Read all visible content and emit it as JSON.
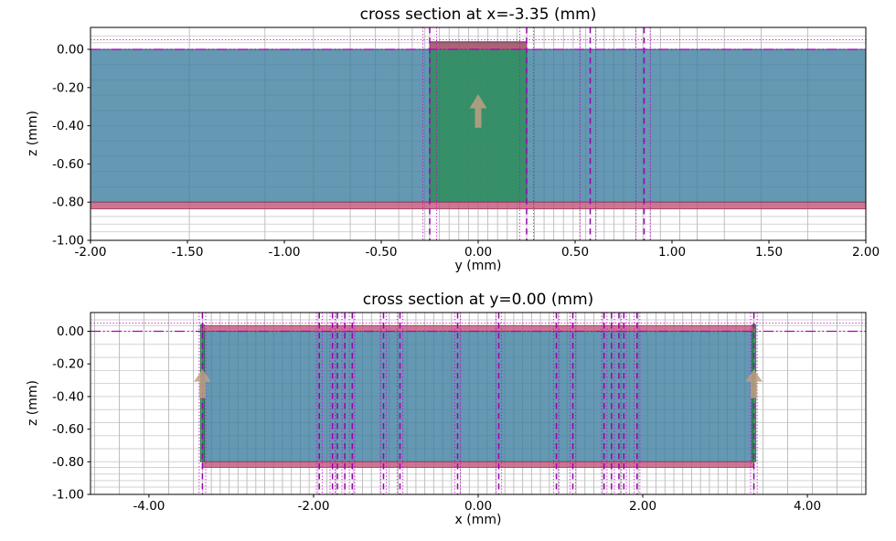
{
  "figure_background": "#ffffff",
  "style": {
    "mesh_vertical_color": "#b9b9b9",
    "mesh_horizontal_color": "#d2d2d2",
    "spine_color": "#000000",
    "tick_label_color": "#000000",
    "magenta_dotted_color": "#cf00cf",
    "magenta_dashed_color": "#9c00b0",
    "magenta_dashdot_color": "#b000b8",
    "arrow_color": "#bfa084",
    "substrate_fill": "#3e7e9f",
    "substrate_edge": "#27566f",
    "port_fill": "#2a8d56",
    "port_edge": "#1e6b41",
    "conductor_fill": "#c25278",
    "conductor_edge": "#9e3f60"
  },
  "chart_data": [
    {
      "type": "area",
      "title": "cross section at x=-3.35 (mm)",
      "xlabel": "y (mm)",
      "ylabel": "z (mm)",
      "xlim": [
        -2.0,
        2.0
      ],
      "zlim": [
        -1.0,
        0.115
      ],
      "xticks": {
        "values": [
          -2.0,
          -1.5,
          -1.0,
          -0.5,
          0.0,
          0.5,
          1.0,
          1.5,
          2.0
        ],
        "labels": [
          "-2.00",
          "-1.50",
          "-1.00",
          "-0.50",
          "0.00",
          "0.50",
          "1.00",
          "1.50",
          "2.00"
        ]
      },
      "zticks": {
        "values": [
          0.0,
          -0.2,
          -0.4,
          -0.6,
          -0.8,
          -1.0
        ],
        "labels": [
          "0.00",
          "-0.20",
          "-0.40",
          "-0.60",
          "-0.80",
          "-1.00"
        ]
      },
      "mesh": {
        "vertical_list": [
          -1.49,
          -1.1,
          -0.85,
          -0.66,
          -0.53,
          -0.41,
          -0.34,
          -0.275,
          0.29,
          0.34,
          0.39,
          0.44,
          0.49,
          0.525,
          0.555,
          0.607,
          0.65,
          0.7,
          0.75,
          0.814,
          0.85,
          0.888,
          0.94,
          1.04,
          1.13,
          1.27,
          1.46,
          1.7
        ],
        "vertical_segments": [
          {
            "from": -0.25,
            "to": 0.25,
            "n": 11
          }
        ],
        "horizontal_list": [
          0.07,
          0.035,
          0.0,
          -0.835,
          -0.875,
          -0.915,
          -0.955
        ],
        "horizontal_segments": [
          {
            "from": -0.08,
            "to": -0.8,
            "n": 10
          }
        ]
      },
      "regions": [
        {
          "name": "substrate",
          "x": [
            -2.0,
            2.0
          ],
          "z": [
            -0.8,
            0.0
          ],
          "role": "substrate"
        },
        {
          "name": "port",
          "x": [
            -0.25,
            0.25
          ],
          "z": [
            -0.8,
            0.04
          ],
          "role": "port"
        },
        {
          "name": "trace",
          "x": [
            -0.25,
            0.25
          ],
          "z": [
            0.0,
            0.035
          ],
          "role": "conductor"
        },
        {
          "name": "ground-plane",
          "x": [
            -2.0,
            2.0
          ],
          "z": [
            -0.835,
            -0.8
          ],
          "role": "conductor"
        }
      ],
      "magenta_vertical_dashed": [
        -0.25,
        0.25,
        0.578,
        0.856
      ],
      "magenta_vertical_dotted": [
        -0.285,
        -0.215,
        0.215,
        0.285,
        0.525,
        0.607,
        0.814,
        0.888
      ],
      "magenta_horizontal_dotted": [
        0.05
      ],
      "magenta_horizontal_dashdot": [
        0.0
      ],
      "arrows": [
        {
          "x": 0.0,
          "z_tail": -0.41,
          "z_head": -0.235
        }
      ]
    },
    {
      "type": "area",
      "title": "cross section at y=0.00 (mm)",
      "xlabel": "x (mm)",
      "ylabel": "z (mm)",
      "xlim": [
        -4.71,
        4.71
      ],
      "zlim": [
        -1.0,
        0.115
      ],
      "xticks": {
        "values": [
          -4.0,
          -2.0,
          0.0,
          2.0,
          4.0
        ],
        "labels": [
          "-4.00",
          "-2.00",
          "0.00",
          "2.00",
          "4.00"
        ]
      },
      "zticks": {
        "values": [
          0.0,
          -0.2,
          -0.4,
          -0.6,
          -0.8,
          -1.0
        ],
        "labels": [
          "0.00",
          "-0.20",
          "-0.40",
          "-0.60",
          "-0.80",
          "-1.00"
        ]
      },
      "mesh": {
        "vertical_list": [
          -4.66,
          -4.36,
          -4.06,
          -3.76,
          -3.46,
          3.46,
          3.76,
          4.06,
          4.36,
          4.66
        ],
        "vertical_segments": [
          {
            "from": -3.35,
            "to": 3.35,
            "n": 63
          }
        ],
        "horizontal_list": [
          0.07,
          0.035,
          0.0,
          -0.835,
          -0.875,
          -0.915,
          -0.955
        ],
        "horizontal_segments": [
          {
            "from": -0.08,
            "to": -0.8,
            "n": 10
          }
        ]
      },
      "regions": [
        {
          "name": "substrate",
          "x": [
            -3.35,
            3.35
          ],
          "z": [
            -0.8,
            0.0
          ],
          "role": "substrate"
        },
        {
          "name": "port-left",
          "x": [
            -3.373,
            -3.327
          ],
          "z": [
            -0.8,
            0.04
          ],
          "role": "port"
        },
        {
          "name": "port-right",
          "x": [
            3.327,
            3.373
          ],
          "z": [
            -0.8,
            0.04
          ],
          "role": "port"
        },
        {
          "name": "trace",
          "x": [
            -3.35,
            3.35
          ],
          "z": [
            0.0,
            0.035
          ],
          "role": "conductor"
        },
        {
          "name": "ground-plane",
          "x": [
            -3.35,
            3.35
          ],
          "z": [
            -0.835,
            -0.8
          ],
          "role": "conductor"
        }
      ],
      "magenta_vertical_dashed": [
        -3.35,
        -1.93,
        -1.77,
        -1.71,
        -1.62,
        -1.53,
        -1.15,
        -0.95,
        -0.25,
        0.25,
        0.95,
        1.15,
        1.53,
        1.62,
        1.71,
        1.77,
        1.93,
        3.35
      ],
      "magenta_vertical_dotted": [
        -3.39,
        -3.31,
        -1.965,
        -1.895,
        -1.8,
        -1.74,
        -1.655,
        -1.565,
        -1.5,
        -1.185,
        -1.115,
        -0.985,
        -0.915,
        -0.285,
        -0.215,
        0.215,
        0.285,
        0.915,
        0.985,
        1.115,
        1.185,
        1.5,
        1.565,
        1.655,
        1.74,
        1.8,
        1.895,
        1.965,
        3.31,
        3.39
      ],
      "magenta_horizontal_dotted": [
        0.05
      ],
      "magenta_horizontal_dashdot": [
        0.0
      ],
      "arrows": [
        {
          "x": -3.35,
          "z_tail": -0.41,
          "z_head": -0.235
        },
        {
          "x": 3.35,
          "z_tail": -0.41,
          "z_head": -0.235
        }
      ]
    }
  ]
}
